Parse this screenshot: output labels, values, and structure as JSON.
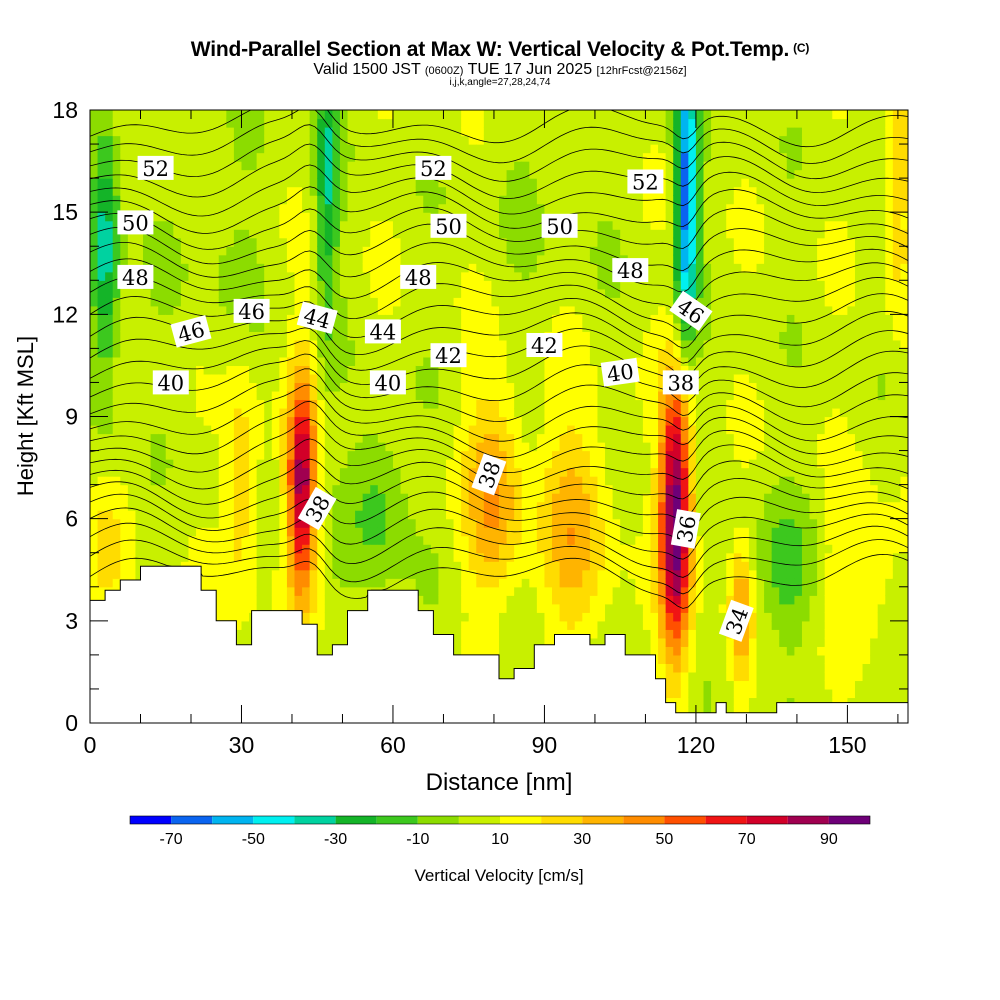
{
  "header": {
    "title": "Wind-Parallel Section at Max W: Vertical Velocity & Pot.Temp.",
    "title_mark": "(C)",
    "subtitle_valid": "Valid 1500 JST",
    "subtitle_z": "(0600Z)",
    "subtitle_date": "TUE 17 Jun 2025",
    "subtitle_fcst": "[12hrFcst@2156z]",
    "params": "i,j,k,angle=27,28,24,74"
  },
  "chart_data": {
    "type": "heatmap",
    "xlabel": "Distance [nm]",
    "ylabel": "Height [Kft MSL]",
    "xlim": [
      0,
      162
    ],
    "ylim": [
      0,
      18
    ],
    "x_ticks": [
      0,
      30,
      60,
      90,
      120,
      150
    ],
    "y_ticks": [
      0,
      3,
      6,
      9,
      12,
      15,
      18
    ],
    "colorbar": {
      "label": "Vertical Velocity [cm/s]",
      "tick_labels": [
        "-70",
        "-50",
        "-30",
        "-10",
        "10",
        "30",
        "50",
        "70",
        "90"
      ],
      "tick_values": [
        -70,
        -50,
        -30,
        -10,
        10,
        30,
        50,
        70,
        90
      ],
      "range": [
        -80,
        100
      ],
      "step": 10,
      "colors": [
        "#0000ff",
        "#0a64f0",
        "#00b4f0",
        "#00f0f0",
        "#00d2a0",
        "#14b428",
        "#3cc81e",
        "#8cdc00",
        "#c8f000",
        "#ffff00",
        "#ffdc00",
        "#ffb400",
        "#ff8c00",
        "#ff5000",
        "#f01414",
        "#d20028",
        "#a00050",
        "#6e0078"
      ]
    },
    "terrain": {
      "x": [
        0,
        3,
        3,
        6,
        6,
        10,
        10,
        16,
        16,
        22,
        22,
        25,
        25,
        29,
        29,
        32,
        32,
        42,
        42,
        45,
        45,
        48,
        48,
        51,
        51,
        55,
        55,
        65,
        65,
        68,
        68,
        72,
        72,
        81,
        81,
        84,
        84,
        88,
        88,
        92,
        92,
        99,
        99,
        102,
        102,
        106,
        106,
        112,
        112,
        114,
        114,
        116,
        116,
        124,
        124,
        126,
        126,
        136,
        136,
        142,
        142,
        145,
        145,
        162
      ],
      "z": [
        3.6,
        3.6,
        3.9,
        3.9,
        4.2,
        4.2,
        4.6,
        4.6,
        4.6,
        4.6,
        3.9,
        3.9,
        3.0,
        3.0,
        2.3,
        2.3,
        3.3,
        3.3,
        2.9,
        2.9,
        2.0,
        2.0,
        2.3,
        2.3,
        3.3,
        3.3,
        3.9,
        3.9,
        3.3,
        3.3,
        2.6,
        2.6,
        2.0,
        2.0,
        1.3,
        1.3,
        1.6,
        1.6,
        2.3,
        2.3,
        2.6,
        2.6,
        2.3,
        2.3,
        2.6,
        2.6,
        2.0,
        2.0,
        1.3,
        1.3,
        0.6,
        0.6,
        0.3,
        0.3,
        0.6,
        0.6,
        0.3,
        0.3,
        0.6,
        0.6,
        0.6,
        0.6,
        0.6,
        0.6
      ]
    },
    "theta_contours": [
      {
        "label": "34",
        "z0": 0.3,
        "amp": 0.3,
        "label_at": [
          128,
          3.0
        ],
        "label_angle": -70
      },
      {
        "label": "36",
        "z0": 4.2,
        "amp": 1.2,
        "label_at": [
          118,
          5.7
        ],
        "label_angle": -80
      },
      {
        "label": "38",
        "z0": 7.8,
        "amp": 1.2,
        "label_at": [
          45,
          6.3
        ],
        "label_angle": -60
      },
      {
        "label": "38",
        "z0": 7.8,
        "amp": 1.2,
        "label_at": [
          79,
          7.3
        ],
        "label_angle": -70
      },
      {
        "label": "38",
        "z0": 9.5,
        "amp": 0.5,
        "label_at": [
          117,
          10.0
        ],
        "label_angle": 0
      },
      {
        "label": "40",
        "z0": 10.1,
        "amp": 0.2,
        "label_at": [
          16,
          10.0
        ],
        "label_angle": 0
      },
      {
        "label": "40",
        "z0": 10.1,
        "amp": 0.2,
        "label_at": [
          59,
          10.0
        ],
        "label_angle": 0
      },
      {
        "label": "40",
        "z0": 10.3,
        "amp": 0.2,
        "label_at": [
          105,
          10.3
        ],
        "label_angle": -8
      },
      {
        "label": "42",
        "z0": 10.8,
        "amp": 0.2,
        "label_at": [
          71,
          10.8
        ],
        "label_angle": 0
      },
      {
        "label": "42",
        "z0": 10.9,
        "amp": 0.2,
        "label_at": [
          90,
          11.1
        ],
        "label_angle": 0
      },
      {
        "label": "44",
        "z0": 11.7,
        "amp": 0.3,
        "label_at": [
          45,
          11.9
        ],
        "label_angle": 15
      },
      {
        "label": "44",
        "z0": 11.5,
        "amp": 0.2,
        "label_at": [
          58,
          11.5
        ],
        "label_angle": 0
      },
      {
        "label": "46",
        "z0": 11.7,
        "amp": 0.3,
        "label_at": [
          20,
          11.5
        ],
        "label_angle": -15
      },
      {
        "label": "46",
        "z0": 12.0,
        "amp": 0.2,
        "label_at": [
          32,
          12.1
        ],
        "label_angle": 0
      },
      {
        "label": "46",
        "z0": 12.1,
        "amp": 0.3,
        "label_at": [
          119,
          12.1
        ],
        "label_angle": 35
      },
      {
        "label": "48",
        "z0": 13.1,
        "amp": 0.2,
        "label_at": [
          9,
          13.1
        ],
        "label_angle": 0
      },
      {
        "label": "48",
        "z0": 13.1,
        "amp": 0.2,
        "label_at": [
          65,
          13.1
        ],
        "label_angle": 0
      },
      {
        "label": "48",
        "z0": 13.3,
        "amp": 0.2,
        "label_at": [
          107,
          13.3
        ],
        "label_angle": 0
      },
      {
        "label": "50",
        "z0": 14.7,
        "amp": 0.2,
        "label_at": [
          9,
          14.7
        ],
        "label_angle": 0
      },
      {
        "label": "50",
        "z0": 14.6,
        "amp": 0.2,
        "label_at": [
          71,
          14.6
        ],
        "label_angle": 0
      },
      {
        "label": "50",
        "z0": 14.6,
        "amp": 0.2,
        "label_at": [
          93,
          14.6
        ],
        "label_angle": 0
      },
      {
        "label": "52",
        "z0": 16.3,
        "amp": 0.2,
        "label_at": [
          13,
          16.3
        ],
        "label_angle": 0
      },
      {
        "label": "52",
        "z0": 16.3,
        "amp": 0.2,
        "label_at": [
          68,
          16.3
        ],
        "label_angle": 0
      },
      {
        "label": "52",
        "z0": 15.9,
        "amp": 0.2,
        "label_at": [
          110,
          15.9
        ],
        "label_angle": 0
      }
    ],
    "velocity_features": [
      {
        "x": 42,
        "z": 7.0,
        "sx": 2.0,
        "sz": 2.3,
        "w": 78
      },
      {
        "x": 30,
        "z": 7.0,
        "sx": 2.5,
        "sz": 2.5,
        "w": 24
      },
      {
        "x": 80,
        "z": 6.8,
        "sx": 4.0,
        "sz": 2.2,
        "w": 34
      },
      {
        "x": 96,
        "z": 5.8,
        "sx": 5.0,
        "sz": 2.4,
        "w": 28
      },
      {
        "x": 116,
        "z": 6.0,
        "sx": 2.2,
        "sz": 2.8,
        "w": 95
      },
      {
        "x": 129,
        "z": 3.2,
        "sx": 1.6,
        "sz": 1.4,
        "w": 34
      },
      {
        "x": 153,
        "z": 4.6,
        "sx": 6.0,
        "sz": 1.5,
        "w": 16
      },
      {
        "x": 3,
        "z": 5.0,
        "sx": 3.0,
        "sz": 1.5,
        "w": 14
      },
      {
        "x": 3,
        "z": 14.0,
        "sx": 2.0,
        "sz": 3.0,
        "w": -42
      },
      {
        "x": 47,
        "z": 16.0,
        "sx": 1.6,
        "sz": 3.0,
        "w": -35
      },
      {
        "x": 118,
        "z": 15.5,
        "sx": 1.6,
        "sz": 3.0,
        "w": -72
      },
      {
        "x": 57,
        "z": 6.5,
        "sx": 4.0,
        "sz": 1.7,
        "w": -22
      },
      {
        "x": 138,
        "z": 4.5,
        "sx": 5.0,
        "sz": 1.5,
        "w": -18
      },
      {
        "x": 25,
        "z": 14.0,
        "sx": 8.0,
        "sz": 3.0,
        "w": -6
      },
      {
        "x": 160,
        "z": 16.0,
        "sx": 2.0,
        "sz": 3.0,
        "w": 22
      },
      {
        "x": 90,
        "z": 16.0,
        "sx": 10.0,
        "sz": 3.0,
        "w": -4
      }
    ],
    "legend": "bottom"
  }
}
